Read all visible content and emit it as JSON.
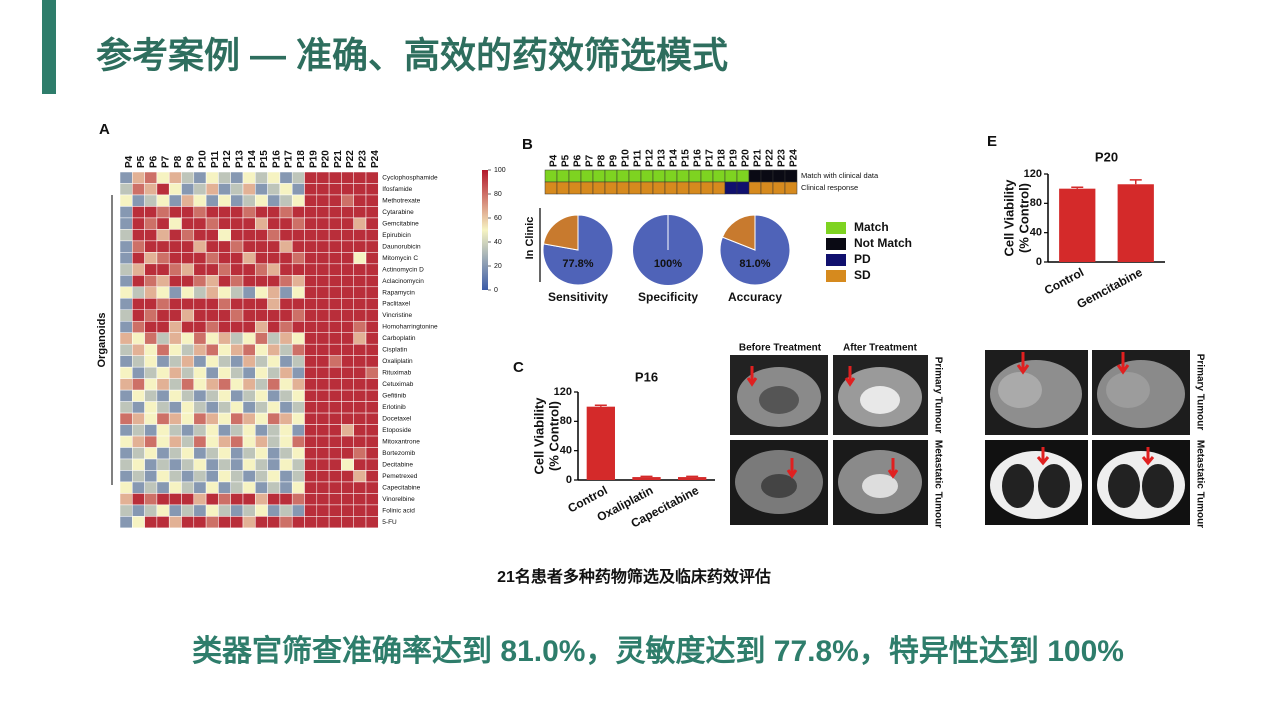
{
  "header": {
    "title": "参考案例 — 准确、高效的药效筛选模式"
  },
  "caption": "21名患者多种药物筛选及临床药效评估",
  "conclusion": "类器官筛查准确率达到 81.0%，灵敏度达到 77.8%，特异性达到 100%",
  "figure_labels": {
    "before": "Before Treatment",
    "after": "After Treatment",
    "primary": "Primary Tumour",
    "metastatic": "Metastatic Tumour"
  },
  "chart_data": [
    {
      "type": "heatmap",
      "panel": "A",
      "y_group_label": "Organoids",
      "categories": [
        "P4",
        "P5",
        "P6",
        "P7",
        "P8",
        "P9",
        "P10",
        "P11",
        "P12",
        "P13",
        "P14",
        "P15",
        "P16",
        "P17",
        "P18",
        "P19",
        "P20",
        "P21",
        "P22",
        "P23",
        "P24"
      ],
      "rows": [
        "Cyclophosphamide",
        "Ifosfamide",
        "Methotrexate",
        "Cytarabine",
        "Gemcitabine",
        "Epirubicin",
        "Daunorubicin",
        "Mitomycin C",
        "Actinomycin D",
        "Aclacinomycin",
        "Rapamycin",
        "Paclitaxel",
        "Vincristine",
        "Homoharringtonine",
        "Carboplatin",
        "Cisplatin",
        "Oxaliplatin",
        "Rituximab",
        "Cetuximab",
        "Gefitinib",
        "Erlotinib",
        "Docetaxel",
        "Etoposide",
        "Mitoxantrone",
        "Bortezomib",
        "Decitabine",
        "Pemetrexed",
        "Capecitabine",
        "Vinorelbine",
        "Folinic acid",
        "5-FU"
      ],
      "values": [
        [
          20,
          65,
          80,
          50,
          65,
          35,
          20,
          50,
          35,
          20,
          50,
          35,
          50,
          20,
          35,
          95,
          95,
          95,
          95,
          95,
          95
        ],
        [
          35,
          80,
          65,
          95,
          50,
          20,
          35,
          65,
          20,
          35,
          65,
          20,
          35,
          50,
          20,
          95,
          95,
          95,
          95,
          95,
          95
        ],
        [
          50,
          20,
          35,
          50,
          20,
          65,
          50,
          20,
          50,
          20,
          35,
          50,
          20,
          35,
          50,
          95,
          95,
          95,
          80,
          95,
          95
        ],
        [
          20,
          95,
          95,
          80,
          95,
          95,
          80,
          95,
          95,
          95,
          80,
          95,
          95,
          80,
          95,
          95,
          95,
          95,
          95,
          95,
          95
        ],
        [
          20,
          95,
          80,
          95,
          50,
          95,
          95,
          80,
          95,
          95,
          95,
          65,
          95,
          95,
          80,
          95,
          95,
          95,
          95,
          65,
          95
        ],
        [
          35,
          95,
          95,
          65,
          95,
          80,
          95,
          95,
          50,
          95,
          95,
          95,
          80,
          95,
          95,
          95,
          95,
          95,
          95,
          95,
          95
        ],
        [
          20,
          80,
          95,
          95,
          95,
          95,
          65,
          95,
          95,
          80,
          95,
          95,
          95,
          65,
          95,
          95,
          95,
          95,
          95,
          95,
          95
        ],
        [
          20,
          95,
          65,
          80,
          95,
          95,
          95,
          80,
          95,
          95,
          65,
          95,
          95,
          95,
          80,
          95,
          95,
          95,
          95,
          50,
          95
        ],
        [
          35,
          65,
          95,
          95,
          80,
          65,
          95,
          95,
          80,
          95,
          95,
          80,
          65,
          95,
          95,
          95,
          95,
          95,
          95,
          95,
          95
        ],
        [
          20,
          95,
          80,
          65,
          95,
          95,
          80,
          65,
          95,
          80,
          95,
          95,
          95,
          80,
          65,
          95,
          95,
          95,
          95,
          95,
          95
        ],
        [
          50,
          35,
          65,
          50,
          20,
          50,
          35,
          65,
          50,
          35,
          20,
          50,
          65,
          20,
          50,
          95,
          95,
          95,
          95,
          95,
          95
        ],
        [
          20,
          95,
          95,
          80,
          95,
          95,
          95,
          95,
          80,
          95,
          95,
          95,
          65,
          95,
          95,
          95,
          95,
          95,
          95,
          95,
          95
        ],
        [
          35,
          95,
          80,
          95,
          95,
          65,
          95,
          95,
          95,
          80,
          95,
          95,
          95,
          95,
          80,
          95,
          95,
          95,
          95,
          95,
          95
        ],
        [
          20,
          80,
          95,
          95,
          65,
          95,
          95,
          80,
          95,
          95,
          95,
          65,
          95,
          80,
          95,
          95,
          95,
          95,
          95,
          80,
          95
        ],
        [
          65,
          50,
          80,
          35,
          65,
          50,
          80,
          50,
          65,
          35,
          50,
          80,
          35,
          65,
          50,
          95,
          95,
          95,
          95,
          65,
          95
        ],
        [
          35,
          65,
          50,
          80,
          50,
          35,
          65,
          80,
          50,
          65,
          80,
          50,
          65,
          35,
          80,
          95,
          95,
          95,
          95,
          95,
          95
        ],
        [
          20,
          35,
          50,
          20,
          35,
          65,
          20,
          50,
          35,
          20,
          65,
          35,
          50,
          20,
          35,
          95,
          95,
          80,
          95,
          95,
          95
        ],
        [
          50,
          20,
          35,
          50,
          65,
          35,
          50,
          20,
          50,
          35,
          20,
          50,
          35,
          65,
          20,
          95,
          95,
          95,
          95,
          95,
          80
        ],
        [
          65,
          80,
          50,
          65,
          35,
          80,
          50,
          65,
          80,
          50,
          65,
          35,
          80,
          50,
          65,
          95,
          95,
          95,
          95,
          95,
          95
        ],
        [
          20,
          50,
          35,
          20,
          50,
          35,
          20,
          35,
          50,
          20,
          35,
          50,
          20,
          35,
          50,
          95,
          95,
          95,
          95,
          95,
          95
        ],
        [
          35,
          20,
          50,
          35,
          20,
          50,
          35,
          20,
          35,
          50,
          20,
          35,
          50,
          20,
          35,
          95,
          95,
          95,
          95,
          95,
          95
        ],
        [
          80,
          65,
          50,
          80,
          65,
          50,
          80,
          65,
          50,
          80,
          65,
          50,
          80,
          65,
          50,
          95,
          95,
          95,
          95,
          95,
          95
        ],
        [
          20,
          35,
          20,
          50,
          35,
          20,
          35,
          50,
          20,
          35,
          50,
          20,
          35,
          50,
          20,
          95,
          95,
          95,
          65,
          95,
          95
        ],
        [
          50,
          65,
          80,
          50,
          65,
          35,
          80,
          50,
          65,
          80,
          50,
          65,
          35,
          50,
          80,
          95,
          95,
          95,
          95,
          95,
          95
        ],
        [
          20,
          35,
          50,
          20,
          35,
          50,
          20,
          35,
          50,
          20,
          35,
          50,
          20,
          35,
          50,
          95,
          95,
          95,
          95,
          80,
          95
        ],
        [
          35,
          50,
          20,
          35,
          20,
          35,
          50,
          20,
          35,
          20,
          50,
          35,
          20,
          50,
          35,
          95,
          95,
          95,
          50,
          95,
          95
        ],
        [
          20,
          35,
          20,
          50,
          35,
          20,
          35,
          20,
          50,
          35,
          20,
          35,
          50,
          20,
          35,
          95,
          95,
          95,
          95,
          65,
          95
        ],
        [
          50,
          20,
          35,
          20,
          50,
          35,
          20,
          50,
          20,
          35,
          50,
          20,
          35,
          20,
          50,
          95,
          95,
          95,
          95,
          95,
          95
        ],
        [
          65,
          95,
          80,
          95,
          95,
          95,
          65,
          95,
          80,
          95,
          95,
          65,
          95,
          95,
          80,
          95,
          95,
          95,
          95,
          95,
          95
        ],
        [
          35,
          20,
          35,
          50,
          20,
          35,
          20,
          50,
          35,
          20,
          35,
          50,
          20,
          35,
          20,
          95,
          95,
          95,
          95,
          95,
          95
        ],
        [
          20,
          50,
          95,
          95,
          65,
          95,
          95,
          80,
          95,
          95,
          65,
          95,
          95,
          80,
          95,
          95,
          95,
          95,
          95,
          95,
          95
        ]
      ],
      "zlim": [
        0,
        100
      ],
      "zticks": [
        0,
        20,
        40,
        60,
        80,
        100
      ],
      "colors": [
        "#3b5ba8",
        "#f6f3c2",
        "#b2182b"
      ]
    },
    {
      "type": "pie",
      "panel": "B",
      "side_label": "In Clinic",
      "categories": [
        "P4",
        "P5",
        "P6",
        "P7",
        "P8",
        "P9",
        "P10",
        "P11",
        "P12",
        "P13",
        "P14",
        "P15",
        "P16",
        "P17",
        "P18",
        "P19",
        "P20",
        "P21",
        "P22",
        "P23",
        "P24"
      ],
      "status_rows": [
        {
          "name": "Match with clinical data",
          "values": [
            "Match",
            "Match",
            "Match",
            "Match",
            "Match",
            "Match",
            "Match",
            "Match",
            "Match",
            "Match",
            "Match",
            "Match",
            "Match",
            "Match",
            "Match",
            "Match",
            "Match",
            "Not Match",
            "Not Match",
            "Not Match",
            "Not Match"
          ]
        },
        {
          "name": "Clinical response",
          "values": [
            "SD",
            "SD",
            "SD",
            "SD",
            "SD",
            "SD",
            "SD",
            "SD",
            "SD",
            "SD",
            "SD",
            "SD",
            "SD",
            "SD",
            "SD",
            "PD",
            "PD",
            "SD",
            "SD",
            "SD",
            "SD"
          ]
        }
      ],
      "legend": [
        {
          "name": "Match",
          "color": "#7ed321"
        },
        {
          "name": "Not Match",
          "color": "#0a0a14"
        },
        {
          "name": "PD",
          "color": "#10106e"
        },
        {
          "name": "SD",
          "color": "#d68a1e"
        }
      ],
      "colors": [
        "#4f63b8",
        "#c87a2e"
      ],
      "pies": [
        {
          "name": "Sensitivity",
          "values": [
            77.8,
            22.2
          ],
          "value_label": "77.8%"
        },
        {
          "name": "Specificity",
          "values": [
            100
          ],
          "value_label": "100%"
        },
        {
          "name": "Accuracy",
          "values": [
            81.0,
            19.0
          ],
          "value_label": "81.0%"
        }
      ]
    },
    {
      "type": "bar",
      "panel": "C",
      "title": "P16",
      "y_label": [
        "Cell Viability",
        "(% Control)"
      ],
      "categories": [
        "Control",
        "Oxaliplatin",
        "Capecitabine"
      ],
      "values": [
        100,
        4,
        4
      ],
      "errors": [
        2,
        1,
        1
      ],
      "color": "#d42a2a",
      "ylim": [
        0,
        120
      ],
      "yticks": [
        0,
        40,
        80,
        120
      ]
    },
    {
      "type": "bar",
      "panel": "E",
      "title": "P20",
      "y_label": [
        "Cell Viability",
        "(% Control)"
      ],
      "categories": [
        "Control",
        "Gemcitabine"
      ],
      "values": [
        100,
        106
      ],
      "errors": [
        2,
        6
      ],
      "color": "#d42a2a",
      "ylim": [
        0,
        120
      ],
      "yticks": [
        0,
        40,
        80,
        120
      ]
    }
  ]
}
